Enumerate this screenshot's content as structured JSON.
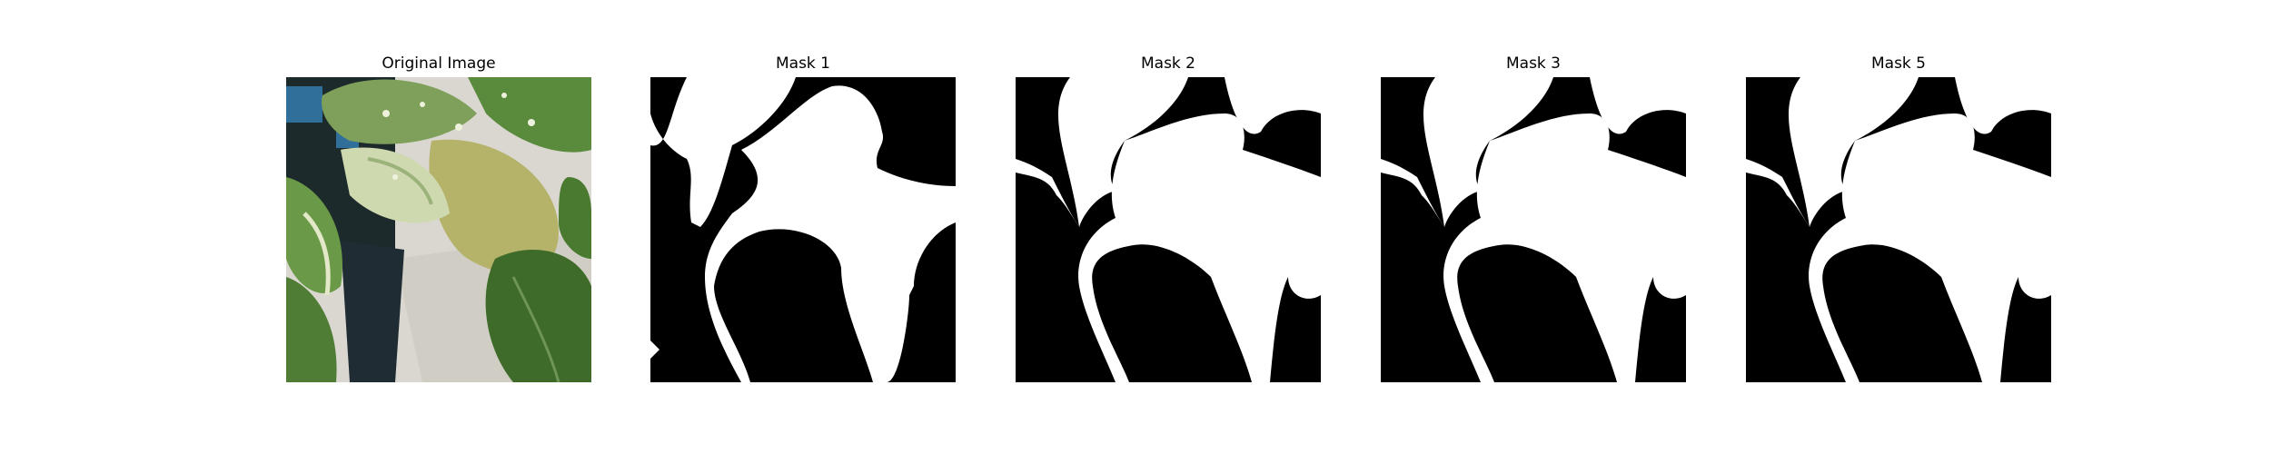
{
  "figure": {
    "panels": [
      {
        "title": "Original Image",
        "kind": "photo",
        "subject": "leafy-plant-photo"
      },
      {
        "title": "Mask 1",
        "kind": "mask",
        "subject": "segmentation-mask"
      },
      {
        "title": "Mask 2",
        "kind": "mask",
        "subject": "segmentation-mask"
      },
      {
        "title": "Mask 3",
        "kind": "mask",
        "subject": "segmentation-mask"
      },
      {
        "title": "Mask 5",
        "kind": "mask",
        "subject": "segmentation-mask"
      }
    ]
  },
  "colors": {
    "background": "#ffffff",
    "mask_fg": "#ffffff",
    "mask_bg": "#000000",
    "leaf_dark": "#3f6b2a",
    "leaf_mid": "#7fa05a",
    "leaf_light": "#cfd9b0",
    "leaf_yellow": "#b5b26a",
    "wall": "#d9d7cf",
    "shadow": "#1d2a2c",
    "pot_blue": "#2f6f9a"
  }
}
